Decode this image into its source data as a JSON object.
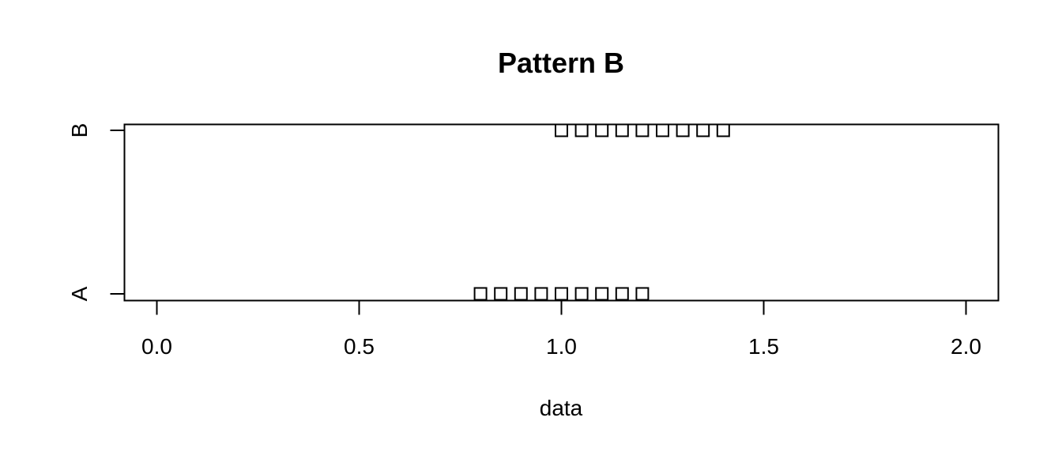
{
  "chart_data": {
    "type": "scatter",
    "title": "Pattern B",
    "xlabel": "data",
    "ylabel": "",
    "xlim": [
      -0.08,
      2.08
    ],
    "x_ticks": [
      "0.0",
      "0.5",
      "1.0",
      "1.5",
      "2.0"
    ],
    "categories": [
      "A",
      "B"
    ],
    "marker": "open-square",
    "grid": false,
    "series": [
      {
        "category": "A",
        "x": [
          0.8,
          0.85,
          0.9,
          0.95,
          1.0,
          1.05,
          1.1,
          1.15,
          1.2
        ]
      },
      {
        "category": "B",
        "x": [
          1.0,
          1.05,
          1.1,
          1.15,
          1.2,
          1.25,
          1.3,
          1.35,
          1.4
        ]
      }
    ],
    "colors": {
      "foreground": "#000000",
      "background": "#ffffff"
    }
  }
}
